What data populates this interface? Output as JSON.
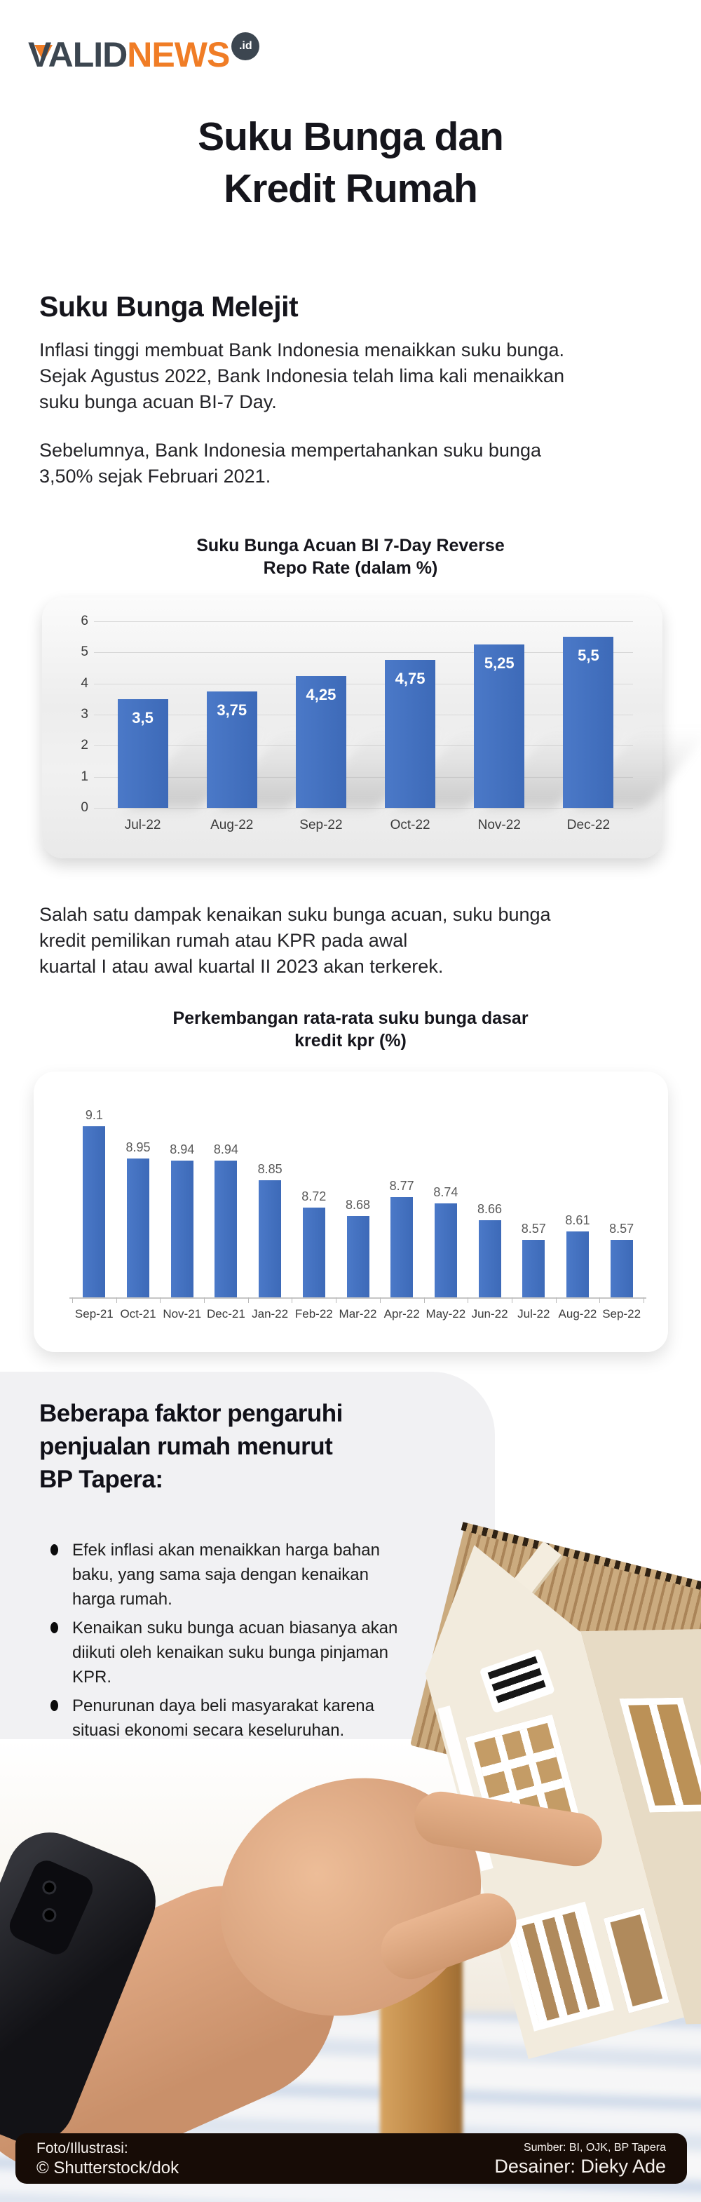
{
  "brand": {
    "logo_dark": "VALID",
    "logo_orange": "NEWS",
    "logo_badge": ".id"
  },
  "title_lines": [
    "Suku Bunga dan",
    "Kredit Rumah"
  ],
  "intro": {
    "heading": "Suku Bunga Melejit",
    "p1_lines": [
      "Inflasi tinggi membuat Bank Indonesia menaikkan suku bunga.",
      "Sejak Agustus 2022, Bank Indonesia telah lima kali menaikkan",
      "suku bunga acuan BI-7 Day."
    ],
    "p2_lines": [
      "Sebelumnya, Bank Indonesia mempertahankan suku bunga",
      "3,50% sejak Februari 2021."
    ]
  },
  "mid_paragraph_lines": [
    "Salah satu dampak kenaikan suku bunga acuan, suku bunga",
    "kredit pemilikan rumah atau KPR pada awal",
    "kuartal I atau awal kuartal II 2023 akan terkerek."
  ],
  "chart_data": [
    {
      "type": "bar",
      "title": "Suku Bunga Acuan BI 7-Day Reverse Repo Rate (dalam %)",
      "title_lines": [
        "Suku Bunga Acuan BI 7-Day Reverse",
        "Repo Rate (dalam %)"
      ],
      "categories": [
        "Jul-22",
        "Aug-22",
        "Sep-22",
        "Oct-22",
        "Nov-22",
        "Dec-22"
      ],
      "values": [
        3.5,
        3.75,
        4.25,
        4.75,
        5.25,
        5.5
      ],
      "labels": [
        "3,5",
        "3,75",
        "4,25",
        "4,75",
        "5,25",
        "5,5"
      ],
      "ylim": [
        0,
        6
      ],
      "yticks": [
        0,
        1,
        2,
        3,
        4,
        5,
        6
      ],
      "grid": true,
      "legend": "none",
      "bar_color": "#3d6ab8",
      "label_color": "#ffffff",
      "label_position": "inside-top"
    },
    {
      "type": "bar",
      "title": "Perkembangan rata-rata suku bunga dasar kredit kpr (%)",
      "title_lines": [
        "Perkembangan rata-rata suku bunga dasar",
        "kredit kpr (%)"
      ],
      "categories": [
        "Sep-21",
        "Oct-21",
        "Nov-21",
        "Dec-21",
        "Jan-22",
        "Feb-22",
        "Mar-22",
        "Apr-22",
        "May-22",
        "Jun-22",
        "Jul-22",
        "Aug-22",
        "Sep-22"
      ],
      "values": [
        9.1,
        8.95,
        8.94,
        8.94,
        8.85,
        8.72,
        8.68,
        8.77,
        8.74,
        8.66,
        8.57,
        8.61,
        8.57
      ],
      "labels": [
        "9.1",
        "8.95",
        "8.94",
        "8.94",
        "8.85",
        "8.72",
        "8.68",
        "8.77",
        "8.74",
        "8.66",
        "8.57",
        "8.61",
        "8.57"
      ],
      "ylim": [
        8.3,
        9.2
      ],
      "grid": false,
      "legend": "none",
      "bar_color": "#3d6ab8",
      "label_color": "#595959",
      "label_position": "above"
    }
  ],
  "factors": {
    "heading_lines": [
      "Beberapa faktor pengaruhi",
      "penjualan rumah menurut",
      "BP Tapera:"
    ],
    "bullets": [
      "Efek inflasi akan menaikkan harga bahan baku, yang sama saja dengan kenaikan harga rumah.",
      "Kenaikan suku bunga acuan biasanya akan diikuti oleh kenaikan suku bunga pinjaman KPR.",
      "Penurunan daya beli masyarakat karena situasi ekonomi secara keseluruhan."
    ]
  },
  "footer": {
    "left_line1": "Foto/Illustrasi:",
    "left_line2": "© Shutterstock/dok",
    "right_line1": "Sumber: BI, OJK, BP Tapera",
    "right_line2": "Desainer: Dieky Ade"
  },
  "colors": {
    "bar_blue": "#3d6ab8",
    "brand_orange": "#f07d26",
    "brand_slate": "#3c4650",
    "panel_gray": "#f1f1f3",
    "footer_bg": "#170c06"
  }
}
